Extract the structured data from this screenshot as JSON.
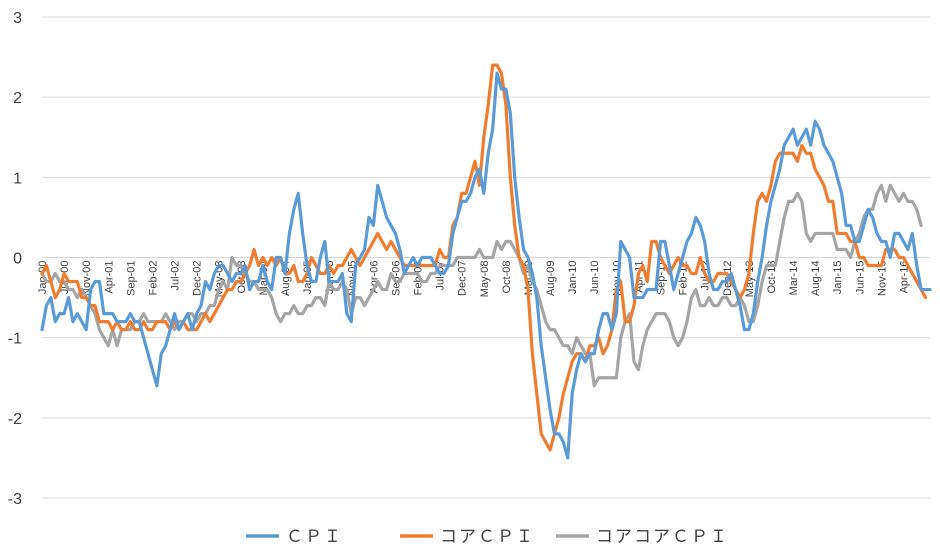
{
  "chart_data": {
    "type": "line",
    "title": "",
    "xlabel": "",
    "ylabel": "",
    "ylim": [
      -3,
      3
    ],
    "yticks": [
      3,
      2,
      1,
      0,
      -1,
      -2,
      -3
    ],
    "grid": true,
    "legend_position": "bottom",
    "x_start": "2000-01",
    "x_tick_labels": [
      "Jan-00",
      "Jun-00",
      "Nov-00",
      "Apr-01",
      "Sep-01",
      "Feb-02",
      "Jul-02",
      "Dec-02",
      "May-03",
      "Oct-03",
      "Mar-04",
      "Aug-04",
      "Jan-05",
      "Jun-05",
      "Nov-05",
      "Apr-06",
      "Sep-06",
      "Feb-07",
      "Jul-07",
      "Dec-07",
      "May-08",
      "Oct-08",
      "Mar-09",
      "Aug-09",
      "Jan-10",
      "Jun-10",
      "Nov-10",
      "Apr-11",
      "Sep-11",
      "Feb-12",
      "Jul-12",
      "Dec-12",
      "May-13",
      "Oct-13",
      "Mar-14",
      "Aug-14",
      "Jan-15",
      "Jun-15",
      "Nov-15",
      "Apr-16"
    ],
    "series": [
      {
        "name": "ＣＰＩ",
        "color": "#5b9bd5",
        "values": [
          -0.9,
          -0.6,
          -0.5,
          -0.8,
          -0.7,
          -0.7,
          -0.5,
          -0.8,
          -0.7,
          -0.8,
          -0.9,
          -0.4,
          -0.3,
          -0.3,
          -0.7,
          -0.7,
          -0.7,
          -0.8,
          -0.8,
          -0.8,
          -0.7,
          -0.8,
          -0.8,
          -1.0,
          -1.2,
          -1.4,
          -1.6,
          -1.2,
          -1.1,
          -0.9,
          -0.7,
          -0.9,
          -0.8,
          -0.7,
          -0.9,
          -0.7,
          -0.6,
          -0.3,
          -0.4,
          -0.2,
          -0.1,
          -0.1,
          -0.2,
          -0.3,
          -0.2,
          -0.2,
          -0.1,
          -0.4,
          -0.3,
          -0.3,
          -0.1,
          -0.3,
          -0.4,
          0.0,
          0.0,
          -0.2,
          0.3,
          0.6,
          0.8,
          0.3,
          -0.1,
          -0.3,
          -0.3,
          0.0,
          0.2,
          -0.3,
          -0.3,
          -0.3,
          -0.2,
          -0.7,
          -0.8,
          -0.1,
          0.0,
          0.1,
          0.5,
          0.4,
          0.9,
          0.7,
          0.5,
          0.4,
          0.3,
          0.1,
          -0.2,
          -0.1,
          0.0,
          -0.1,
          0.0,
          0.0,
          0.0,
          -0.1,
          -0.2,
          -0.2,
          -0.1,
          0.3,
          0.5,
          0.7,
          0.7,
          0.8,
          1.0,
          1.1,
          0.8,
          1.3,
          1.6,
          2.3,
          2.1,
          2.1,
          1.8,
          1.0,
          0.5,
          0.1,
          0.0,
          -0.2,
          -0.5,
          -1.1,
          -1.5,
          -1.9,
          -2.2,
          -2.2,
          -2.3,
          -2.5,
          -1.7,
          -1.4,
          -1.2,
          -1.3,
          -1.2,
          -1.2,
          -0.9,
          -0.7,
          -0.7,
          -0.9,
          -0.7,
          0.2,
          0.1,
          0.0,
          -0.5,
          -0.5,
          -0.5,
          -0.4,
          -0.4,
          -0.4,
          0.2,
          0.2,
          -0.1,
          -0.4,
          -0.2,
          0.0,
          0.2,
          0.3,
          0.5,
          0.4,
          0.2,
          -0.2,
          -0.4,
          -0.4,
          -0.3,
          -0.3,
          -0.2,
          -0.4,
          -0.6,
          -0.9,
          -0.9,
          -0.7,
          -0.3,
          0.0,
          0.4,
          0.7,
          0.9,
          1.1,
          1.4,
          1.5,
          1.6,
          1.4,
          1.5,
          1.6,
          1.4,
          1.7,
          1.6,
          1.4,
          1.3,
          1.2,
          1.0,
          0.8,
          0.4,
          0.4,
          0.2,
          0.2,
          0.4,
          0.6,
          0.5,
          0.3,
          0.2,
          0.2,
          0.0,
          0.3,
          0.3,
          0.2,
          0.1,
          0.3,
          -0.1,
          -0.4,
          -0.4,
          -0.4
        ]
      },
      {
        "name": "コアＣＰＩ",
        "color": "#ed7d31",
        "values": [
          -0.2,
          -0.1,
          -0.3,
          -0.5,
          -0.4,
          -0.2,
          -0.3,
          -0.3,
          -0.3,
          -0.5,
          -0.5,
          -0.6,
          -0.6,
          -0.8,
          -0.8,
          -0.8,
          -0.9,
          -0.8,
          -0.9,
          -0.9,
          -0.8,
          -0.9,
          -0.9,
          -0.8,
          -0.9,
          -0.9,
          -0.8,
          -0.8,
          -0.8,
          -0.9,
          -0.8,
          -0.9,
          -0.8,
          -0.9,
          -0.9,
          -0.9,
          -0.8,
          -0.7,
          -0.8,
          -0.7,
          -0.6,
          -0.5,
          -0.4,
          -0.4,
          -0.3,
          -0.3,
          -0.2,
          -0.1,
          0.1,
          -0.1,
          0.0,
          -0.1,
          0.0,
          -0.1,
          0.0,
          -0.2,
          -0.2,
          -0.1,
          -0.3,
          -0.3,
          -0.2,
          0.0,
          -0.1,
          -0.2,
          -0.2,
          -0.1,
          -0.2,
          -0.1,
          -0.1,
          0.0,
          0.1,
          0.0,
          -0.1,
          0.0,
          0.1,
          0.2,
          0.3,
          0.2,
          0.1,
          0.2,
          0.1,
          0.0,
          -0.1,
          -0.1,
          -0.1,
          -0.1,
          -0.1,
          -0.1,
          -0.1,
          -0.1,
          0.1,
          0.0,
          0.0,
          0.4,
          0.5,
          0.8,
          0.8,
          1.0,
          1.2,
          0.9,
          1.5,
          1.9,
          2.4,
          2.4,
          2.3,
          1.9,
          1.0,
          0.4,
          0.0,
          -0.1,
          -0.4,
          -1.2,
          -1.7,
          -2.2,
          -2.3,
          -2.4,
          -2.2,
          -2.0,
          -1.7,
          -1.5,
          -1.3,
          -1.2,
          -1.2,
          -1.3,
          -1.1,
          -1.1,
          -1.0,
          -1.2,
          -1.1,
          -0.9,
          -0.4,
          -0.3,
          -0.8,
          -0.8,
          -0.6,
          -0.2,
          -0.1,
          -0.3,
          0.2,
          0.2,
          0.0,
          -0.1,
          -0.2,
          -0.1,
          0.0,
          -0.1,
          -0.1,
          -0.2,
          -0.2,
          0.0,
          -0.2,
          -0.3,
          -0.3,
          -0.2,
          -0.2,
          -0.2,
          -0.3,
          -0.4,
          -0.5,
          -0.4,
          -0.2,
          0.3,
          0.7,
          0.8,
          0.7,
          0.9,
          1.2,
          1.3,
          1.3,
          1.3,
          1.3,
          1.2,
          1.4,
          1.3,
          1.3,
          1.1,
          1.0,
          0.9,
          0.7,
          0.7,
          0.3,
          0.3,
          0.3,
          0.2,
          0.2,
          0.0,
          0.0,
          -0.1,
          -0.1,
          -0.1,
          -0.1,
          0.1,
          0.1,
          0.1,
          0.0,
          0.0,
          -0.1,
          -0.2,
          -0.3,
          -0.4,
          -0.5
        ]
      },
      {
        "name": "コアコアＣＰＩ",
        "color": "#a5a5a5",
        "values": [
          -0.2,
          -0.3,
          -0.3,
          -0.2,
          -0.3,
          -0.3,
          -0.4,
          -0.4,
          -0.5,
          -0.4,
          -0.5,
          -0.6,
          -0.7,
          -0.9,
          -1.0,
          -1.1,
          -0.9,
          -1.1,
          -0.9,
          -0.9,
          -0.9,
          -0.8,
          -0.8,
          -0.7,
          -0.8,
          -0.8,
          -0.8,
          -0.8,
          -0.7,
          -0.8,
          -0.9,
          -0.8,
          -0.8,
          -0.7,
          -0.7,
          -0.8,
          -0.7,
          -0.7,
          -0.6,
          -0.6,
          -0.4,
          -0.3,
          -0.4,
          0.0,
          -0.1,
          -0.1,
          -0.2,
          -0.3,
          -0.3,
          -0.4,
          -0.4,
          -0.4,
          -0.5,
          -0.7,
          -0.8,
          -0.7,
          -0.7,
          -0.6,
          -0.7,
          -0.7,
          -0.6,
          -0.6,
          -0.5,
          -0.5,
          -0.6,
          -0.3,
          -0.4,
          -0.4,
          -0.3,
          -0.4,
          -0.7,
          -0.5,
          -0.5,
          -0.6,
          -0.5,
          -0.4,
          -0.3,
          -0.4,
          -0.4,
          -0.2,
          -0.3,
          -0.3,
          -0.2,
          -0.2,
          -0.2,
          -0.2,
          -0.3,
          -0.3,
          -0.2,
          -0.2,
          -0.1,
          -0.1,
          -0.1,
          -0.1,
          0.0,
          0.0,
          0.0,
          0.0,
          0.0,
          0.1,
          0.0,
          0.0,
          0.0,
          0.2,
          0.1,
          0.2,
          0.2,
          0.1,
          0.0,
          -0.2,
          -0.1,
          -0.3,
          -0.4,
          -0.6,
          -0.8,
          -0.9,
          -0.9,
          -1.0,
          -1.1,
          -1.1,
          -1.2,
          -1.0,
          -1.1,
          -1.2,
          -1.2,
          -1.6,
          -1.5,
          -1.5,
          -1.5,
          -1.5,
          -1.5,
          -1.0,
          -0.8,
          -0.7,
          -1.3,
          -1.4,
          -1.1,
          -0.9,
          -0.8,
          -0.7,
          -0.7,
          -0.7,
          -0.8,
          -1.0,
          -1.1,
          -1.0,
          -0.8,
          -0.5,
          -0.4,
          -0.6,
          -0.6,
          -0.5,
          -0.6,
          -0.6,
          -0.5,
          -0.5,
          -0.6,
          -0.6,
          -0.5,
          -0.6,
          -0.8,
          -0.8,
          -0.6,
          -0.3,
          -0.1,
          -0.1,
          -0.1,
          0.2,
          0.5,
          0.7,
          0.7,
          0.8,
          0.7,
          0.3,
          0.2,
          0.3,
          0.3,
          0.3,
          0.3,
          0.3,
          0.1,
          0.1,
          0.1,
          0.0,
          0.2,
          0.3,
          0.5,
          0.6,
          0.6,
          0.8,
          0.9,
          0.7,
          0.9,
          0.8,
          0.7,
          0.8,
          0.7,
          0.7,
          0.6,
          0.4
        ]
      }
    ]
  }
}
